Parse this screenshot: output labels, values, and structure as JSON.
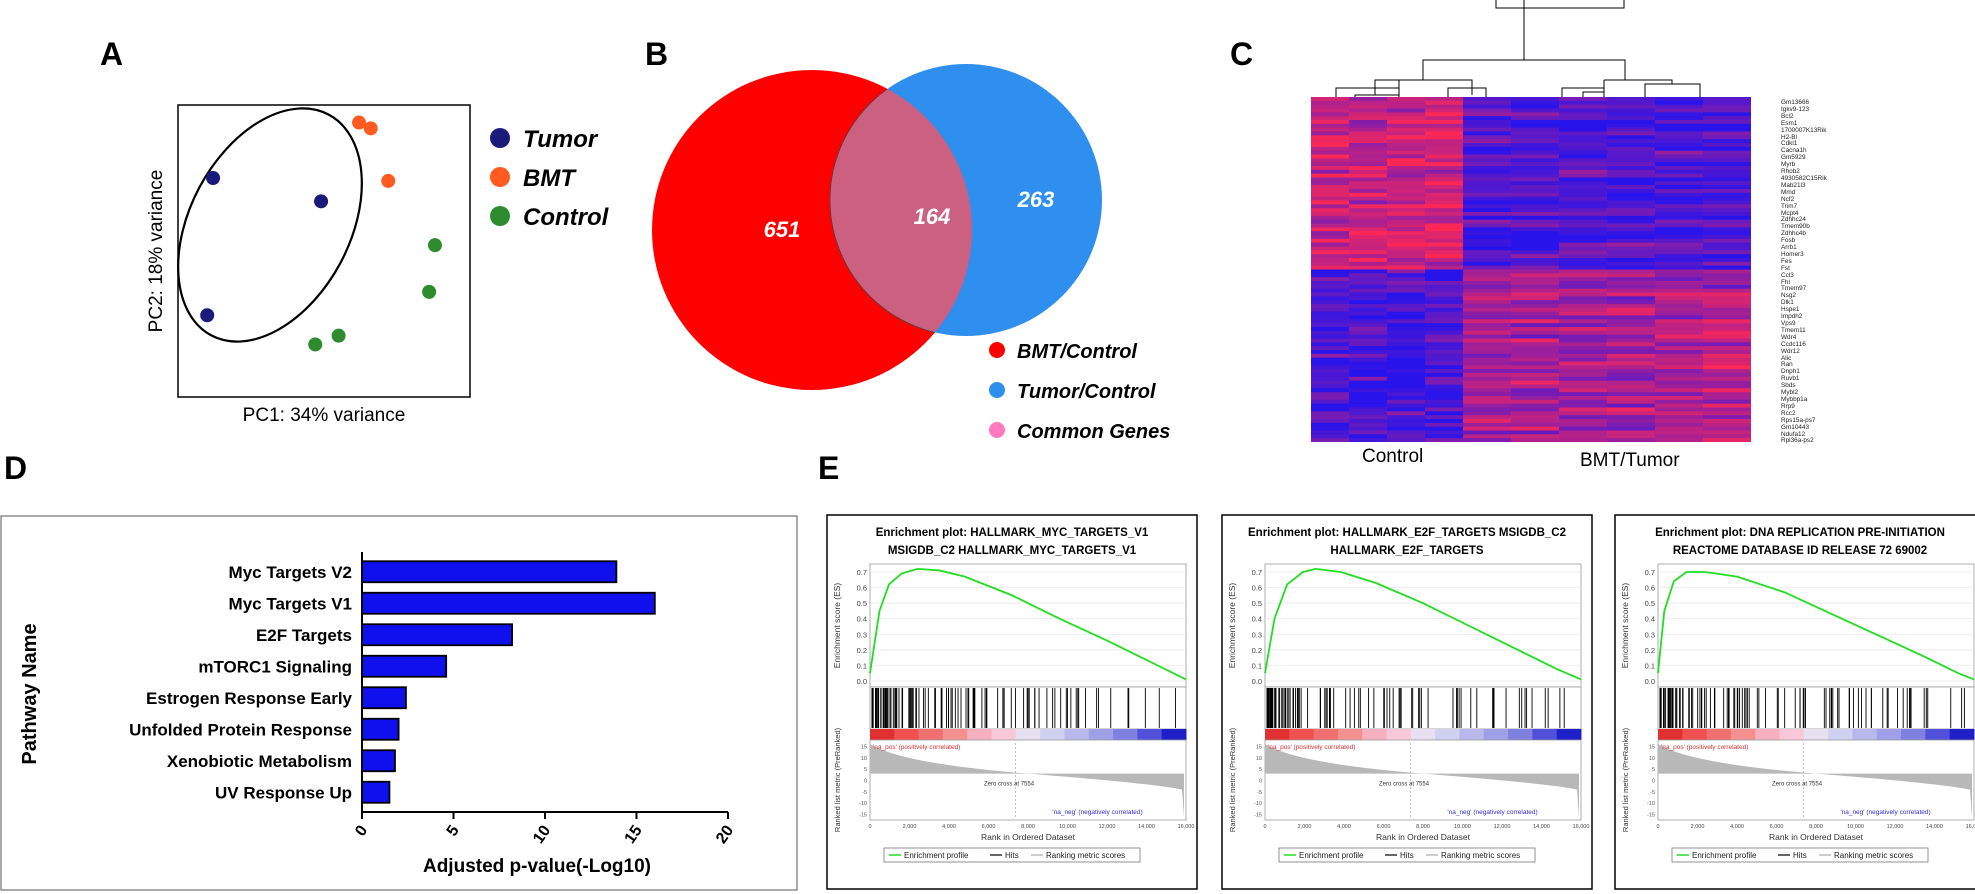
{
  "panels": {
    "a": {
      "letter": "A",
      "xlabel": "PC1: 34% variance",
      "ylabel": "PC2: 18% variance",
      "legend": [
        {
          "label": "Tumor",
          "color": "#1a1a7a"
        },
        {
          "label": "BMT",
          "color": "#ff5a1f"
        },
        {
          "label": "Control",
          "color": "#2e8b2e"
        }
      ]
    },
    "b": {
      "letter": "B",
      "left_count": "651",
      "overlap_count": "164",
      "right_count": "263",
      "legend": [
        {
          "label": "BMT/Control",
          "color": "#ff0000"
        },
        {
          "label": "Tumor/Control",
          "color": "#2f8fef"
        },
        {
          "label": "Common Genes",
          "color": "#ff78c0"
        }
      ]
    },
    "c": {
      "letter": "C",
      "group_left": "Control",
      "group_right": "BMT/Tumor",
      "genes": [
        "Gm13666",
        "Igkv9-123",
        "Bcl2",
        "Esm1",
        "1700007K13Rik",
        "H2-Bl",
        "Cdkl1",
        "Cacna1h",
        "Gm5929",
        "Myrb",
        "Rhob2",
        "4930582C15Rik",
        "Mab21l3",
        "Mmd",
        "Ncf2",
        "Trim7",
        "Mcpt4",
        "Zdhhc24",
        "Tmem90b",
        "Zdhhc4b",
        "Fosb",
        "Arrb1",
        "Homer3",
        "Fes",
        "Fst",
        "Ccl3",
        "Fhl",
        "Tmem97",
        "Nsg2",
        "Dlk1",
        "Hspe1",
        "Impdh2",
        "Vps9",
        "Tmem11",
        "Wdr4",
        "Ccdc116",
        "Wdr12",
        "Alic",
        "Ran",
        "Dnph1",
        "Ruvb1",
        "Sbds",
        "Mybl2",
        "Mybbp1a",
        "Rrp9",
        "Rcc2",
        "Rps15a-ps7",
        "Gm10443",
        "Ndufa12",
        "Rpl36a-ps2"
      ]
    },
    "d": {
      "letter": "D"
    },
    "e": {
      "letter": "E",
      "plots": [
        {
          "title1": "Enrichment plot: HALLMARK_MYC_TARGETS_V1",
          "title2": "MSIGDB_C2 HALLMARK_MYC_TARGETS_V1"
        },
        {
          "title1": "Enrichment plot: HALLMARK_E2F_TARGETS MSIGDB_C2",
          "title2": "HALLMARK_E2F_TARGETS"
        },
        {
          "title1": "Enrichment plot: DNA REPLICATION PRE-INITIATION",
          "title2": "REACTOME DATABASE ID RELEASE 72 69002"
        }
      ],
      "common": {
        "es_label": "Enrichment score (ES)",
        "metric_label": "Ranked list metric (PreRanked)",
        "xlabel": "Rank in Ordered Dataset",
        "pos_label": "'na_pos' (positively correlated)",
        "neg_label": "'na_neg' (negatively correlated)",
        "zero_cross": "Zero cross at 7554",
        "legend_profile": "Enrichment profile",
        "legend_hits": "Hits",
        "legend_rank": "Ranking metric scores",
        "es_ticks": [
          "0.7",
          "0.6",
          "0.5",
          "0.4",
          "0.3",
          "0.2",
          "0.1",
          "0.0"
        ],
        "metric_ticks": [
          "15",
          "10",
          "5",
          "0",
          "-5",
          "-10",
          "-15"
        ],
        "x_ticks": [
          "0",
          "2,000",
          "4,000",
          "6,000",
          "8,000",
          "10,000",
          "12,000",
          "14,000",
          "16,000"
        ]
      }
    }
  },
  "chart_data": [
    {
      "type": "scatter",
      "title": "",
      "xlabel": "PC1: 34% variance",
      "ylabel": "PC2: 18% variance",
      "xlim": [
        0,
        100
      ],
      "ylim": [
        0,
        100
      ],
      "series": [
        {
          "name": "Tumor",
          "color": "#1a1a7a",
          "points": [
            [
              12,
              75
            ],
            [
              49,
              67
            ],
            [
              10,
              28
            ]
          ]
        },
        {
          "name": "BMT",
          "color": "#ff5a1f",
          "points": [
            [
              62,
              94
            ],
            [
              66,
              92
            ],
            [
              72,
              74
            ]
          ]
        },
        {
          "name": "Control",
          "color": "#2e8b2e",
          "points": [
            [
              47,
              18
            ],
            [
              55,
              21
            ],
            [
              86,
              36
            ],
            [
              88,
              52
            ]
          ]
        }
      ]
    },
    {
      "type": "bar",
      "orientation": "horizontal",
      "title": "",
      "ylabel": "Pathway Name",
      "xlabel": "Adjusted p-value(-Log10)",
      "xlim": [
        0,
        20
      ],
      "xticks": [
        0,
        5,
        10,
        15,
        20
      ],
      "categories": [
        "Myc Targets V2",
        "Myc Targets V1",
        "E2F Targets",
        "mTORC1 Signaling",
        "Estrogen Response Early",
        "Unfolded Protein Response",
        "Xenobiotic Metabolism",
        "UV Response Up"
      ],
      "values": [
        13.9,
        16.0,
        8.2,
        4.6,
        2.4,
        2.0,
        1.8,
        1.5
      ],
      "bar_color": "#1010ee"
    }
  ]
}
